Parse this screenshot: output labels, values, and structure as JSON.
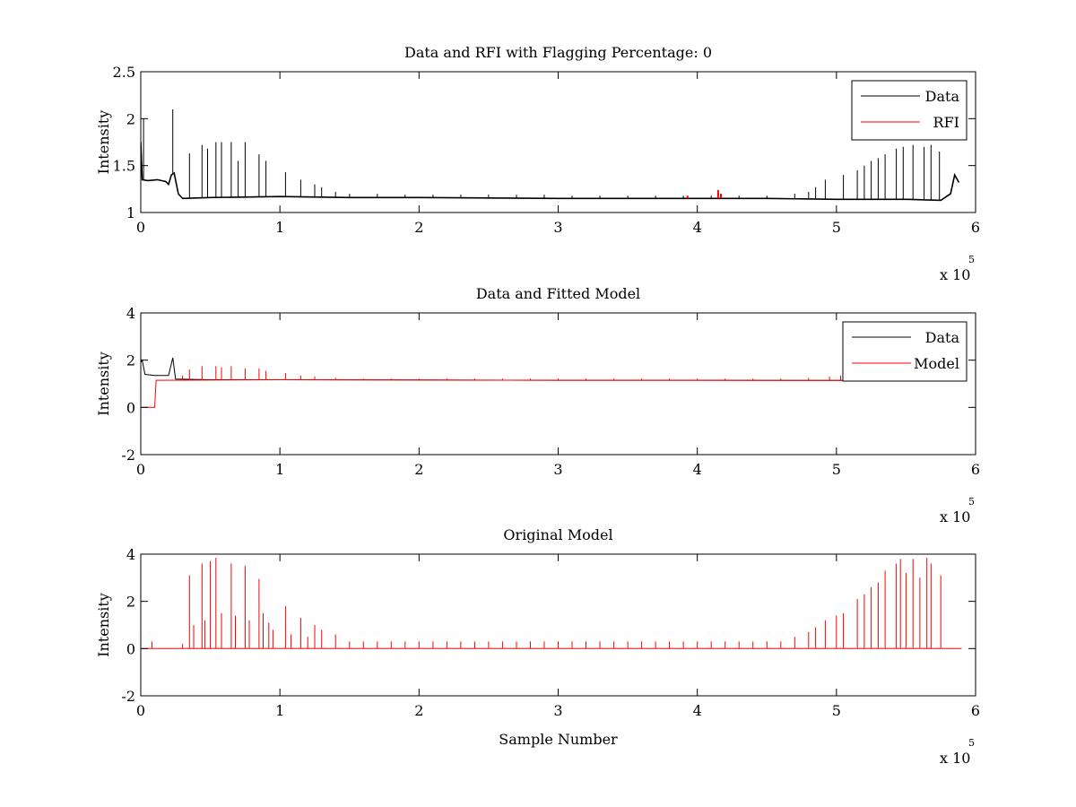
{
  "chart_data": [
    {
      "type": "line",
      "title": "Data and RFI with Flagging Percentage: 0",
      "xlabel": "",
      "ylabel": "Intensity",
      "xlim": [
        0,
        6
      ],
      "ylim": [
        1,
        2.5
      ],
      "xticks": [
        "0",
        "1",
        "2",
        "3",
        "4",
        "5",
        "6"
      ],
      "yticks": [
        "1",
        "1.5",
        "2",
        "2.5"
      ],
      "x_multiplier": "x 10",
      "x_multiplier_exponent": "5",
      "legend": {
        "placement": "top-right",
        "entries": [
          "Data",
          "RFI"
        ]
      },
      "grid": false,
      "series": [
        {
          "name": "Data",
          "color": "#000000",
          "baseline": [
            [
              0,
              1.75
            ],
            [
              0.01,
              1.35
            ],
            [
              0.05,
              1.34
            ],
            [
              0.12,
              1.35
            ],
            [
              0.18,
              1.33
            ],
            [
              0.2,
              1.3
            ],
            [
              0.22,
              1.4
            ],
            [
              0.24,
              1.42
            ],
            [
              0.27,
              1.2
            ],
            [
              0.3,
              1.15
            ],
            [
              0.5,
              1.16
            ],
            [
              1,
              1.17
            ],
            [
              1.5,
              1.16
            ],
            [
              2,
              1.16
            ],
            [
              3,
              1.15
            ],
            [
              4,
              1.15
            ],
            [
              4.5,
              1.15
            ],
            [
              5,
              1.14
            ],
            [
              5.5,
              1.14
            ],
            [
              5.75,
              1.13
            ],
            [
              5.82,
              1.2
            ],
            [
              5.85,
              1.4
            ],
            [
              5.88,
              1.32
            ]
          ],
          "spikes": [
            [
              0.02,
              2.0
            ],
            [
              0.23,
              2.1
            ],
            [
              0.35,
              1.63
            ],
            [
              0.44,
              1.72
            ],
            [
              0.48,
              1.68
            ],
            [
              0.54,
              1.75
            ],
            [
              0.58,
              1.75
            ],
            [
              0.65,
              1.75
            ],
            [
              0.7,
              1.55
            ],
            [
              0.75,
              1.75
            ],
            [
              0.85,
              1.62
            ],
            [
              0.9,
              1.55
            ],
            [
              1.04,
              1.43
            ],
            [
              1.15,
              1.35
            ],
            [
              1.25,
              1.3
            ],
            [
              1.3,
              1.27
            ],
            [
              1.4,
              1.22
            ],
            [
              1.5,
              1.2
            ],
            [
              1.7,
              1.2
            ],
            [
              1.9,
              1.19
            ],
            [
              2.1,
              1.19
            ],
            [
              2.3,
              1.19
            ],
            [
              2.5,
              1.19
            ],
            [
              2.7,
              1.19
            ],
            [
              2.9,
              1.19
            ],
            [
              3.1,
              1.18
            ],
            [
              3.3,
              1.18
            ],
            [
              3.5,
              1.18
            ],
            [
              3.7,
              1.18
            ],
            [
              3.9,
              1.18
            ],
            [
              4.1,
              1.18
            ],
            [
              4.3,
              1.18
            ],
            [
              4.5,
              1.18
            ],
            [
              4.7,
              1.2
            ],
            [
              4.8,
              1.22
            ],
            [
              4.85,
              1.27
            ],
            [
              4.92,
              1.35
            ],
            [
              5.05,
              1.4
            ],
            [
              5.15,
              1.45
            ],
            [
              5.2,
              1.5
            ],
            [
              5.25,
              1.55
            ],
            [
              5.3,
              1.58
            ],
            [
              5.35,
              1.62
            ],
            [
              5.43,
              1.68
            ],
            [
              5.48,
              1.7
            ],
            [
              5.55,
              1.72
            ],
            [
              5.63,
              1.7
            ],
            [
              5.68,
              1.72
            ],
            [
              5.74,
              1.65
            ]
          ]
        },
        {
          "name": "RFI",
          "color": "#ff0000",
          "points": [
            [
              3.93,
              1.18
            ],
            [
              4.15,
              1.24
            ],
            [
              4.17,
              1.2
            ]
          ]
        }
      ]
    },
    {
      "type": "line",
      "title": "Data and Fitted Model",
      "xlabel": "",
      "ylabel": "Intensity",
      "xlim": [
        0,
        6
      ],
      "ylim": [
        -2,
        4
      ],
      "xticks": [
        "0",
        "1",
        "2",
        "3",
        "4",
        "5",
        "6"
      ],
      "yticks": [
        "-2",
        "0",
        "2",
        "4"
      ],
      "x_multiplier": "x 10",
      "x_multiplier_exponent": "5",
      "legend": {
        "placement": "top-right",
        "entries": [
          "Data",
          "Model"
        ]
      },
      "grid": false,
      "series": [
        {
          "name": "Data",
          "color": "#000000",
          "baseline": [
            [
              0,
              1.9
            ],
            [
              0.01,
              2.0
            ],
            [
              0.03,
              1.4
            ],
            [
              0.1,
              1.35
            ],
            [
              0.2,
              1.35
            ],
            [
              0.23,
              2.1
            ],
            [
              0.25,
              1.2
            ],
            [
              0.5,
              1.17
            ],
            [
              1,
              1.17
            ],
            [
              2,
              1.16
            ],
            [
              3,
              1.15
            ],
            [
              4,
              1.15
            ],
            [
              5,
              1.14
            ],
            [
              5.05,
              1.14
            ]
          ]
        },
        {
          "name": "Model",
          "color": "#ff0000",
          "baseline": [
            [
              0,
              0.0
            ],
            [
              0.1,
              0.0
            ],
            [
              0.11,
              1.15
            ],
            [
              1,
              1.17
            ],
            [
              2,
              1.16
            ],
            [
              3,
              1.15
            ],
            [
              4,
              1.15
            ],
            [
              5,
              1.14
            ],
            [
              5.05,
              1.14
            ]
          ],
          "spikes": [
            [
              0.3,
              1.35
            ],
            [
              0.35,
              1.6
            ],
            [
              0.44,
              1.75
            ],
            [
              0.54,
              1.75
            ],
            [
              0.58,
              1.7
            ],
            [
              0.65,
              1.75
            ],
            [
              0.75,
              1.65
            ],
            [
              0.85,
              1.65
            ],
            [
              0.9,
              1.55
            ],
            [
              1.04,
              1.45
            ],
            [
              1.15,
              1.35
            ],
            [
              1.25,
              1.3
            ],
            [
              1.4,
              1.25
            ],
            [
              1.6,
              1.22
            ],
            [
              1.8,
              1.22
            ],
            [
              2.0,
              1.22
            ],
            [
              2.2,
              1.22
            ],
            [
              2.4,
              1.22
            ],
            [
              2.6,
              1.22
            ],
            [
              2.8,
              1.22
            ],
            [
              3.0,
              1.22
            ],
            [
              3.2,
              1.22
            ],
            [
              3.4,
              1.22
            ],
            [
              3.6,
              1.22
            ],
            [
              3.8,
              1.22
            ],
            [
              4.0,
              1.22
            ],
            [
              4.2,
              1.22
            ],
            [
              4.4,
              1.22
            ],
            [
              4.6,
              1.22
            ],
            [
              4.8,
              1.25
            ],
            [
              4.95,
              1.3
            ],
            [
              5.03,
              1.35
            ]
          ]
        }
      ]
    },
    {
      "type": "line",
      "title": "Original Model",
      "xlabel": "Sample Number",
      "ylabel": "Intensity",
      "xlim": [
        0,
        6
      ],
      "ylim": [
        -2,
        4
      ],
      "xticks": [
        "0",
        "1",
        "2",
        "3",
        "4",
        "5",
        "6"
      ],
      "yticks": [
        "-2",
        "0",
        "2",
        "4"
      ],
      "x_multiplier": "x 10",
      "x_multiplier_exponent": "5",
      "grid": false,
      "series": [
        {
          "color": "#ff0000",
          "baseline": [
            [
              0,
              0
            ],
            [
              5.9,
              0
            ]
          ],
          "spikes": [
            [
              0.08,
              0.3
            ],
            [
              0.3,
              0.2
            ],
            [
              0.35,
              3.1
            ],
            [
              0.38,
              1.0
            ],
            [
              0.44,
              3.6
            ],
            [
              0.46,
              1.2
            ],
            [
              0.5,
              3.7
            ],
            [
              0.54,
              3.85
            ],
            [
              0.58,
              1.5
            ],
            [
              0.65,
              3.6
            ],
            [
              0.68,
              1.4
            ],
            [
              0.75,
              3.5
            ],
            [
              0.78,
              1.2
            ],
            [
              0.85,
              2.95
            ],
            [
              0.88,
              1.5
            ],
            [
              0.92,
              1.1
            ],
            [
              0.95,
              0.8
            ],
            [
              1.04,
              1.8
            ],
            [
              1.08,
              0.6
            ],
            [
              1.15,
              1.3
            ],
            [
              1.2,
              0.5
            ],
            [
              1.25,
              1.0
            ],
            [
              1.3,
              0.8
            ],
            [
              1.4,
              0.6
            ],
            [
              1.5,
              0.3
            ],
            [
              1.6,
              0.3
            ],
            [
              1.7,
              0.3
            ],
            [
              1.8,
              0.3
            ],
            [
              1.9,
              0.3
            ],
            [
              2.0,
              0.3
            ],
            [
              2.1,
              0.3
            ],
            [
              2.2,
              0.3
            ],
            [
              2.3,
              0.3
            ],
            [
              2.4,
              0.3
            ],
            [
              2.5,
              0.3
            ],
            [
              2.6,
              0.3
            ],
            [
              2.7,
              0.3
            ],
            [
              2.8,
              0.3
            ],
            [
              2.9,
              0.3
            ],
            [
              3.0,
              0.3
            ],
            [
              3.1,
              0.3
            ],
            [
              3.2,
              0.3
            ],
            [
              3.3,
              0.3
            ],
            [
              3.4,
              0.3
            ],
            [
              3.5,
              0.3
            ],
            [
              3.6,
              0.3
            ],
            [
              3.7,
              0.3
            ],
            [
              3.8,
              0.3
            ],
            [
              3.9,
              0.3
            ],
            [
              4.0,
              0.3
            ],
            [
              4.1,
              0.3
            ],
            [
              4.2,
              0.3
            ],
            [
              4.3,
              0.3
            ],
            [
              4.4,
              0.3
            ],
            [
              4.5,
              0.3
            ],
            [
              4.6,
              0.3
            ],
            [
              4.7,
              0.5
            ],
            [
              4.8,
              0.7
            ],
            [
              4.85,
              0.9
            ],
            [
              4.92,
              1.2
            ],
            [
              5.0,
              1.4
            ],
            [
              5.05,
              1.5
            ],
            [
              5.15,
              2.1
            ],
            [
              5.2,
              2.3
            ],
            [
              5.25,
              2.6
            ],
            [
              5.3,
              2.8
            ],
            [
              5.35,
              3.3
            ],
            [
              5.43,
              3.6
            ],
            [
              5.46,
              3.8
            ],
            [
              5.5,
              3.2
            ],
            [
              5.55,
              3.8
            ],
            [
              5.6,
              3.0
            ],
            [
              5.65,
              3.85
            ],
            [
              5.68,
              3.6
            ],
            [
              5.75,
              3.1
            ]
          ]
        }
      ]
    }
  ]
}
